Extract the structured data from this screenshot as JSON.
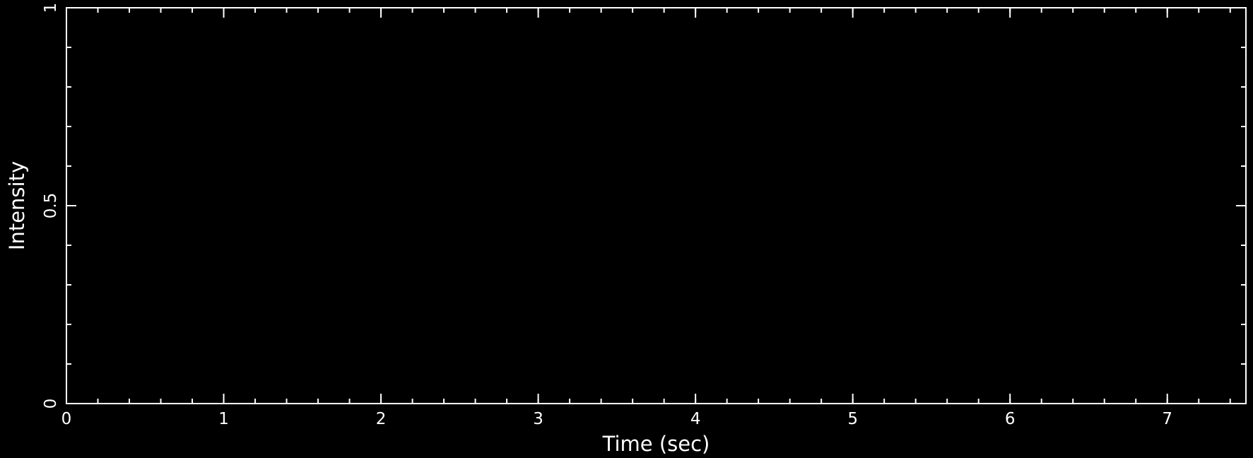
{
  "chart_data": {
    "type": "line",
    "title": "",
    "xlabel": "Time (sec)",
    "ylabel": "Intensity",
    "xlim": [
      0,
      7.5
    ],
    "ylim": [
      0,
      1
    ],
    "x_ticks": [
      0,
      1,
      2,
      3,
      4,
      5,
      6,
      7
    ],
    "x_tick_labels": [
      "0",
      "1",
      "2",
      "3",
      "4",
      "5",
      "6",
      "7"
    ],
    "x_minor_step": 0.2,
    "y_ticks": [
      0,
      0.5,
      1
    ],
    "y_tick_labels": [
      "0",
      "0.5",
      "1"
    ],
    "y_minor_step": 0.1,
    "grid": false,
    "series": [],
    "colors": {
      "background": "#000000",
      "foreground": "#ffffff"
    }
  }
}
